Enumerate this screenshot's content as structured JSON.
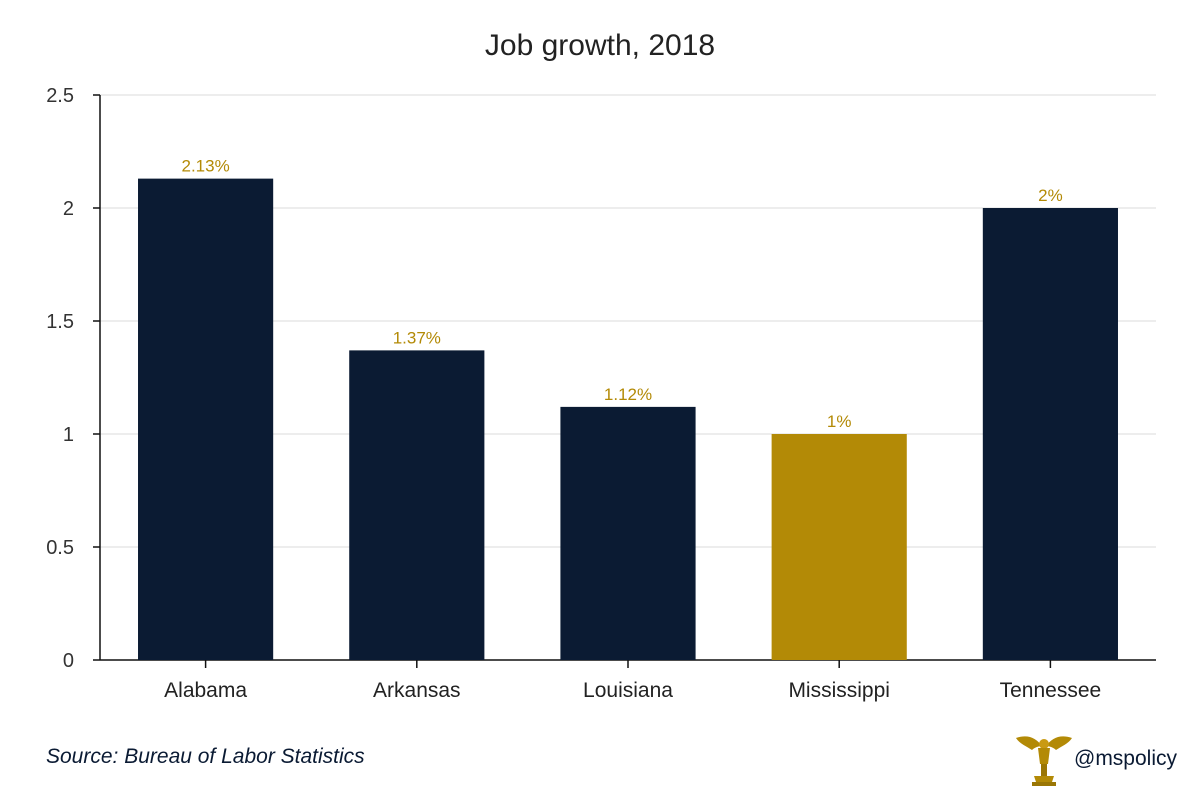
{
  "chart_data": {
    "type": "bar",
    "title": "Job growth, 2018",
    "categories": [
      "Alabama",
      "Arkansas",
      "Louisiana",
      "Mississippi",
      "Tennessee"
    ],
    "values": [
      2.13,
      1.37,
      1.12,
      1,
      2
    ],
    "data_labels": [
      "2.13%",
      "1.37%",
      "1.12%",
      "1%",
      "2%"
    ],
    "bar_colors": [
      "#0b1b33",
      "#0b1b33",
      "#0b1b33",
      "#b38a06",
      "#0b1b33"
    ],
    "label_color": "#b38a06",
    "yticks": [
      "0",
      "0.5",
      "1",
      "1.5",
      "2",
      "2.5"
    ],
    "ytick_values": [
      0,
      0.5,
      1,
      1.5,
      2,
      2.5
    ],
    "ylim": [
      0,
      2.5
    ],
    "grid": true,
    "xlabel": "",
    "ylabel": ""
  },
  "footer": {
    "source": "Source: Bureau of Labor Statistics",
    "handle": "@mspolicy",
    "logo_icon": "eagle-icon"
  }
}
